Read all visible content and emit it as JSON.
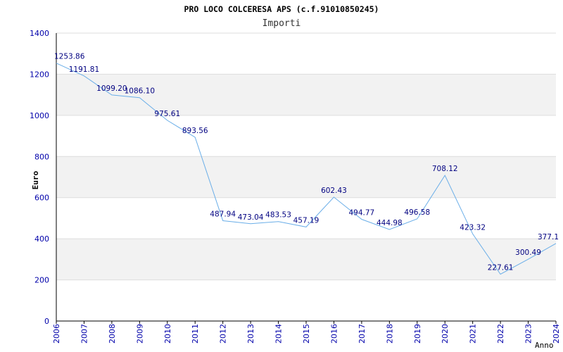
{
  "chart_data": {
    "type": "line",
    "title": "PRO LOCO COLCERESA APS (c.f.91010850245)",
    "subtitle": "Importi",
    "xlabel": "Anno",
    "ylabel": "Euro",
    "ylim": [
      0,
      1400
    ],
    "yticks": [
      0,
      200,
      400,
      600,
      800,
      1000,
      1200,
      1400
    ],
    "x": [
      "2006",
      "2007",
      "2008",
      "2009",
      "2010",
      "2011",
      "2012",
      "2013",
      "2014",
      "2015",
      "2016",
      "2017",
      "2018",
      "2019",
      "2020",
      "2021",
      "2022",
      "2023",
      "2024"
    ],
    "series": [
      {
        "values": [
          1253.86,
          1191.81,
          1099.2,
          1086.1,
          975.61,
          893.56,
          487.94,
          473.04,
          483.53,
          457.19,
          602.43,
          494.77,
          444.98,
          496.58,
          708.12,
          423.32,
          227.61,
          300.49,
          377.1
        ],
        "labels": [
          "1253.86",
          "1191.81",
          "1099.20",
          "1086.10",
          "975.61",
          "893.56",
          "487.94",
          "473.04",
          "483.53",
          "457.19",
          "602.43",
          "494.77",
          "444.98",
          "496.58",
          "708.12",
          "423.32",
          "227.61",
          "300.49",
          "377.1"
        ]
      }
    ],
    "grid": true,
    "banded_background": true,
    "colors": {
      "line": "#6aaee8",
      "axis_text": "#0000aa",
      "label_text": "#000080",
      "band": "#f2f2f2",
      "grid": "#dddddd"
    }
  }
}
